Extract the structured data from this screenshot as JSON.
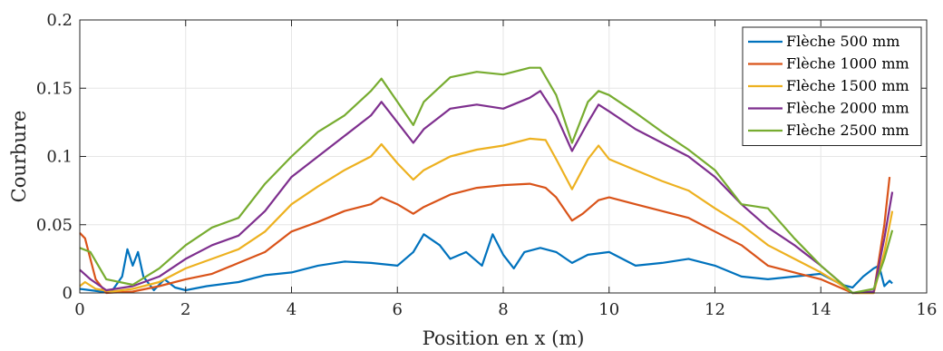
{
  "chart_data": {
    "type": "line",
    "xlabel": "Position en x (m)",
    "ylabel": "Courbure",
    "xlim": [
      0,
      16
    ],
    "ylim": [
      0,
      0.2
    ],
    "xticks": [
      0,
      2,
      4,
      6,
      8,
      10,
      12,
      14,
      16
    ],
    "xtick_labels": [
      "0",
      "2",
      "4",
      "6",
      "8",
      "10",
      "12",
      "14",
      "16"
    ],
    "yticks": [
      0,
      0.05,
      0.1,
      0.15,
      0.2
    ],
    "ytick_labels": [
      "0",
      "0.05",
      "0.1",
      "0.15",
      "0.2"
    ],
    "grid": true,
    "legend_position": "top-right",
    "series": [
      {
        "name": "Flèche 500 mm",
        "color": "#0072BD",
        "points": [
          [
            0,
            0.003
          ],
          [
            0.2,
            0.002
          ],
          [
            0.4,
            0.001
          ],
          [
            0.6,
            0.001
          ],
          [
            0.8,
            0.012
          ],
          [
            0.9,
            0.032
          ],
          [
            1.0,
            0.02
          ],
          [
            1.1,
            0.03
          ],
          [
            1.2,
            0.012
          ],
          [
            1.4,
            0.002
          ],
          [
            1.6,
            0.01
          ],
          [
            1.8,
            0.004
          ],
          [
            2.0,
            0.002
          ],
          [
            2.4,
            0.005
          ],
          [
            3.0,
            0.008
          ],
          [
            3.5,
            0.013
          ],
          [
            4.0,
            0.015
          ],
          [
            4.5,
            0.02
          ],
          [
            5.0,
            0.023
          ],
          [
            5.5,
            0.022
          ],
          [
            6.0,
            0.02
          ],
          [
            6.3,
            0.03
          ],
          [
            6.5,
            0.043
          ],
          [
            6.8,
            0.035
          ],
          [
            7.0,
            0.025
          ],
          [
            7.3,
            0.03
          ],
          [
            7.6,
            0.02
          ],
          [
            7.8,
            0.043
          ],
          [
            8.0,
            0.028
          ],
          [
            8.2,
            0.018
          ],
          [
            8.4,
            0.03
          ],
          [
            8.7,
            0.033
          ],
          [
            9.0,
            0.03
          ],
          [
            9.3,
            0.022
          ],
          [
            9.6,
            0.028
          ],
          [
            10.0,
            0.03
          ],
          [
            10.5,
            0.02
          ],
          [
            11.0,
            0.022
          ],
          [
            11.5,
            0.025
          ],
          [
            12.0,
            0.02
          ],
          [
            12.5,
            0.012
          ],
          [
            13.0,
            0.01
          ],
          [
            13.5,
            0.012
          ],
          [
            14.0,
            0.014
          ],
          [
            14.4,
            0.006
          ],
          [
            14.6,
            0.004
          ],
          [
            14.8,
            0.012
          ],
          [
            15.0,
            0.018
          ],
          [
            15.1,
            0.02
          ],
          [
            15.2,
            0.005
          ],
          [
            15.3,
            0.009
          ],
          [
            15.35,
            0.007
          ]
        ]
      },
      {
        "name": "Flèche 1000 mm",
        "color": "#D95319",
        "points": [
          [
            0,
            0.044
          ],
          [
            0.1,
            0.04
          ],
          [
            0.3,
            0.01
          ],
          [
            0.5,
            0.0
          ],
          [
            1.0,
            0.001
          ],
          [
            1.5,
            0.005
          ],
          [
            2.0,
            0.01
          ],
          [
            2.5,
            0.014
          ],
          [
            3.0,
            0.022
          ],
          [
            3.5,
            0.03
          ],
          [
            4.0,
            0.045
          ],
          [
            4.5,
            0.052
          ],
          [
            5.0,
            0.06
          ],
          [
            5.5,
            0.065
          ],
          [
            5.7,
            0.07
          ],
          [
            6.0,
            0.065
          ],
          [
            6.3,
            0.058
          ],
          [
            6.5,
            0.063
          ],
          [
            7.0,
            0.072
          ],
          [
            7.5,
            0.077
          ],
          [
            8.0,
            0.079
          ],
          [
            8.5,
            0.08
          ],
          [
            8.8,
            0.077
          ],
          [
            9.0,
            0.07
          ],
          [
            9.3,
            0.053
          ],
          [
            9.5,
            0.058
          ],
          [
            9.8,
            0.068
          ],
          [
            10.0,
            0.07
          ],
          [
            10.5,
            0.065
          ],
          [
            11.0,
            0.06
          ],
          [
            11.5,
            0.055
          ],
          [
            12.0,
            0.045
          ],
          [
            12.5,
            0.035
          ],
          [
            13.0,
            0.02
          ],
          [
            13.5,
            0.015
          ],
          [
            14.0,
            0.01
          ],
          [
            14.3,
            0.005
          ],
          [
            14.6,
            0.0
          ],
          [
            15.0,
            0.0
          ],
          [
            15.2,
            0.05
          ],
          [
            15.3,
            0.085
          ]
        ]
      },
      {
        "name": "Flèche 1500 mm",
        "color": "#EDB120",
        "points": [
          [
            0,
            0.005
          ],
          [
            0.1,
            0.008
          ],
          [
            0.3,
            0.003
          ],
          [
            0.6,
            0.001
          ],
          [
            1.0,
            0.003
          ],
          [
            1.5,
            0.008
          ],
          [
            2.0,
            0.018
          ],
          [
            2.5,
            0.025
          ],
          [
            3.0,
            0.032
          ],
          [
            3.5,
            0.045
          ],
          [
            4.0,
            0.065
          ],
          [
            4.5,
            0.078
          ],
          [
            5.0,
            0.09
          ],
          [
            5.5,
            0.1
          ],
          [
            5.7,
            0.109
          ],
          [
            6.0,
            0.095
          ],
          [
            6.3,
            0.083
          ],
          [
            6.5,
            0.09
          ],
          [
            7.0,
            0.1
          ],
          [
            7.5,
            0.105
          ],
          [
            8.0,
            0.108
          ],
          [
            8.5,
            0.113
          ],
          [
            8.8,
            0.112
          ],
          [
            9.0,
            0.098
          ],
          [
            9.3,
            0.076
          ],
          [
            9.6,
            0.098
          ],
          [
            9.8,
            0.108
          ],
          [
            10.0,
            0.098
          ],
          [
            10.5,
            0.09
          ],
          [
            11.0,
            0.082
          ],
          [
            11.5,
            0.075
          ],
          [
            12.0,
            0.062
          ],
          [
            12.5,
            0.05
          ],
          [
            13.0,
            0.035
          ],
          [
            13.5,
            0.025
          ],
          [
            14.0,
            0.015
          ],
          [
            14.3,
            0.008
          ],
          [
            14.6,
            0.0
          ],
          [
            15.0,
            0.0
          ],
          [
            15.2,
            0.03
          ],
          [
            15.35,
            0.06
          ]
        ]
      },
      {
        "name": "Flèche 2000 mm",
        "color": "#7E2F8E",
        "points": [
          [
            0,
            0.017
          ],
          [
            0.2,
            0.01
          ],
          [
            0.5,
            0.002
          ],
          [
            1.0,
            0.005
          ],
          [
            1.5,
            0.012
          ],
          [
            2.0,
            0.025
          ],
          [
            2.5,
            0.035
          ],
          [
            3.0,
            0.042
          ],
          [
            3.5,
            0.06
          ],
          [
            4.0,
            0.085
          ],
          [
            4.5,
            0.1
          ],
          [
            5.0,
            0.115
          ],
          [
            5.5,
            0.13
          ],
          [
            5.7,
            0.14
          ],
          [
            6.0,
            0.125
          ],
          [
            6.3,
            0.11
          ],
          [
            6.5,
            0.12
          ],
          [
            7.0,
            0.135
          ],
          [
            7.5,
            0.138
          ],
          [
            8.0,
            0.135
          ],
          [
            8.5,
            0.143
          ],
          [
            8.7,
            0.148
          ],
          [
            9.0,
            0.13
          ],
          [
            9.3,
            0.104
          ],
          [
            9.6,
            0.125
          ],
          [
            9.8,
            0.138
          ],
          [
            10.0,
            0.133
          ],
          [
            10.5,
            0.12
          ],
          [
            11.0,
            0.11
          ],
          [
            11.5,
            0.1
          ],
          [
            12.0,
            0.085
          ],
          [
            12.5,
            0.065
          ],
          [
            13.0,
            0.048
          ],
          [
            13.5,
            0.035
          ],
          [
            14.0,
            0.02
          ],
          [
            14.3,
            0.01
          ],
          [
            14.6,
            0.0
          ],
          [
            15.0,
            0.001
          ],
          [
            15.2,
            0.04
          ],
          [
            15.35,
            0.074
          ]
        ]
      },
      {
        "name": "Flèche 2500 mm",
        "color": "#77AC30",
        "points": [
          [
            0,
            0.033
          ],
          [
            0.2,
            0.03
          ],
          [
            0.5,
            0.01
          ],
          [
            1.0,
            0.006
          ],
          [
            1.5,
            0.018
          ],
          [
            2.0,
            0.035
          ],
          [
            2.5,
            0.048
          ],
          [
            3.0,
            0.055
          ],
          [
            3.5,
            0.08
          ],
          [
            4.0,
            0.1
          ],
          [
            4.5,
            0.118
          ],
          [
            5.0,
            0.13
          ],
          [
            5.5,
            0.148
          ],
          [
            5.7,
            0.157
          ],
          [
            6.0,
            0.14
          ],
          [
            6.3,
            0.123
          ],
          [
            6.5,
            0.14
          ],
          [
            7.0,
            0.158
          ],
          [
            7.5,
            0.162
          ],
          [
            8.0,
            0.16
          ],
          [
            8.5,
            0.165
          ],
          [
            8.7,
            0.165
          ],
          [
            9.0,
            0.145
          ],
          [
            9.3,
            0.11
          ],
          [
            9.6,
            0.14
          ],
          [
            9.8,
            0.148
          ],
          [
            10.0,
            0.145
          ],
          [
            10.5,
            0.132
          ],
          [
            11.0,
            0.118
          ],
          [
            11.5,
            0.105
          ],
          [
            12.0,
            0.09
          ],
          [
            12.5,
            0.065
          ],
          [
            13.0,
            0.062
          ],
          [
            13.5,
            0.04
          ],
          [
            14.0,
            0.02
          ],
          [
            14.3,
            0.01
          ],
          [
            14.6,
            0.0
          ],
          [
            15.0,
            0.003
          ],
          [
            15.2,
            0.025
          ],
          [
            15.35,
            0.046
          ]
        ]
      }
    ]
  }
}
